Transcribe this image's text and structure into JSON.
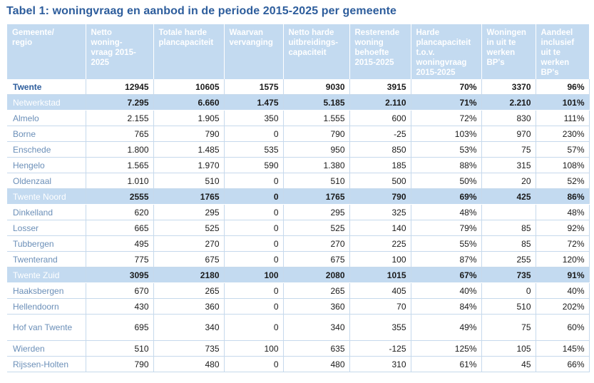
{
  "title": "Tabel 1: woningvraag en aanbod in de periode 2015-2025 per gemeente",
  "headers": [
    "Gemeente/\nregio",
    "Netto\nwoning-\nvraag 2015-\n2025",
    "Totale harde\nplancapaciteit",
    "Waarvan\nvervanging",
    "Netto harde\nuitbreidings-\ncapaciteit",
    "Resterende\nwoning\nbehoefte\n2015-2025",
    "Harde\nplancapaciteit\nt.o.v.\nwoningvraag\n2015-2025",
    "Woningen\nin uit te\nwerken\nBP's",
    "Aandeel\ninclusief\nuit te\nwerken\nBP's"
  ],
  "rows": [
    {
      "type": "total",
      "cells": [
        "Twente",
        "12945",
        "10605",
        "1575",
        "9030",
        "3915",
        "70%",
        "3370",
        "96%"
      ]
    },
    {
      "type": "region",
      "cells": [
        "Netwerkstad",
        "7.295",
        "6.660",
        "1.475",
        "5.185",
        "2.110",
        "71%",
        "2.210",
        "101%"
      ]
    },
    {
      "type": "muni",
      "cells": [
        "Almelo",
        "2.155",
        "1.905",
        "350",
        "1.555",
        "600",
        "72%",
        "830",
        "111%"
      ]
    },
    {
      "type": "muni",
      "cells": [
        "Borne",
        "765",
        "790",
        "0",
        "790",
        "-25",
        "103%",
        "970",
        "230%"
      ]
    },
    {
      "type": "muni",
      "cells": [
        "Enschede",
        "1.800",
        "1.485",
        "535",
        "950",
        "850",
        "53%",
        "75",
        "57%"
      ]
    },
    {
      "type": "muni",
      "cells": [
        "Hengelo",
        "1.565",
        "1.970",
        "590",
        "1.380",
        "185",
        "88%",
        "315",
        "108%"
      ]
    },
    {
      "type": "muni",
      "cells": [
        "Oldenzaal",
        "1.010",
        "510",
        "0",
        "510",
        "500",
        "50%",
        "20",
        "52%"
      ]
    },
    {
      "type": "region",
      "cells": [
        "Twente Noord",
        "2555",
        "1765",
        "0",
        "1765",
        "790",
        "69%",
        "425",
        "86%"
      ]
    },
    {
      "type": "muni",
      "cells": [
        "Dinkelland",
        "620",
        "295",
        "0",
        "295",
        "325",
        "48%",
        "",
        "48%"
      ]
    },
    {
      "type": "muni",
      "cells": [
        "Losser",
        "665",
        "525",
        "0",
        "525",
        "140",
        "79%",
        "85",
        "92%"
      ]
    },
    {
      "type": "muni",
      "cells": [
        "Tubbergen",
        "495",
        "270",
        "0",
        "270",
        "225",
        "55%",
        "85",
        "72%"
      ]
    },
    {
      "type": "muni",
      "cells": [
        "Twenterand",
        "775",
        "675",
        "0",
        "675",
        "100",
        "87%",
        "255",
        "120%"
      ]
    },
    {
      "type": "region",
      "cells": [
        "Twente Zuid",
        "3095",
        "2180",
        "100",
        "2080",
        "1015",
        "67%",
        "735",
        "91%"
      ]
    },
    {
      "type": "muni",
      "cells": [
        "Haaksbergen",
        "670",
        "265",
        "0",
        "265",
        "405",
        "40%",
        "0",
        "40%"
      ]
    },
    {
      "type": "muni",
      "cells": [
        "Hellendoorn",
        "430",
        "360",
        "0",
        "360",
        "70",
        "84%",
        "510",
        "202%"
      ]
    },
    {
      "type": "muni",
      "tall": true,
      "cells": [
        "Hof van Twente",
        "695",
        "340",
        "0",
        "340",
        "355",
        "49%",
        "75",
        "60%"
      ]
    },
    {
      "type": "muni",
      "cells": [
        "Wierden",
        "510",
        "735",
        "100",
        "635",
        "-125",
        "125%",
        "105",
        "145%"
      ]
    },
    {
      "type": "muni",
      "cells": [
        "Rijssen-Holten",
        "790",
        "480",
        "0",
        "480",
        "310",
        "61%",
        "45",
        "66%"
      ]
    }
  ]
}
